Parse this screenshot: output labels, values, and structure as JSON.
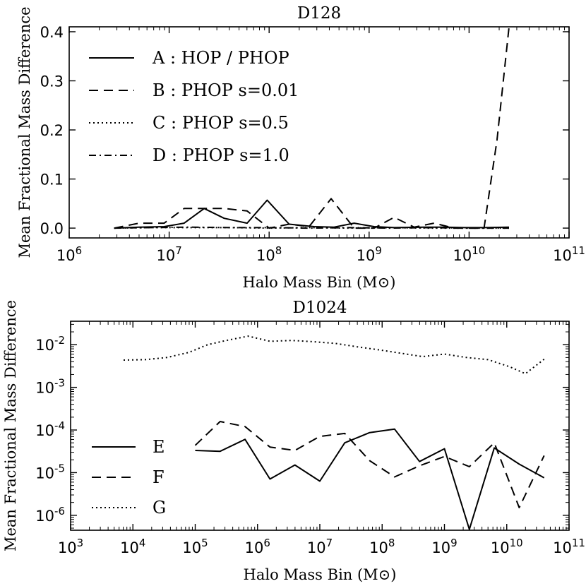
{
  "colors": {
    "line": "#000000",
    "background": "#ffffff"
  },
  "chart_data": [
    {
      "type": "line",
      "title": "D128",
      "xlabel": "Halo Mass Bin (M⊙)",
      "ylabel": "Mean Fractional Mass Difference",
      "xscale": "log",
      "yscale": "linear",
      "xlim_exp": [
        6,
        11
      ],
      "ylim": [
        -0.02,
        0.41
      ],
      "x_ticks": [
        {
          "base": "10",
          "exp": "6"
        },
        {
          "base": "10",
          "exp": "7"
        },
        {
          "base": "10",
          "exp": "8"
        },
        {
          "base": "10",
          "exp": "9"
        },
        {
          "base": "10",
          "exp": "10"
        },
        {
          "base": "10",
          "exp": "11"
        }
      ],
      "y_ticks": [
        "0.0",
        "0.1",
        "0.2",
        "0.3",
        "0.4"
      ],
      "legend_position": "top-left",
      "series": [
        {
          "key": "A",
          "name": "A : HOP / PHOP",
          "style": "solid",
          "x_log": [
            6.45,
            6.7,
            6.95,
            7.15,
            7.35,
            7.55,
            7.78,
            7.98,
            8.2,
            8.45,
            8.65,
            8.85,
            9.05,
            9.25,
            9.55,
            9.75,
            9.95,
            10.15,
            10.4
          ],
          "y": [
            0.0,
            0.002,
            0.003,
            0.01,
            0.04,
            0.02,
            0.01,
            0.057,
            0.008,
            0.003,
            0.002,
            0.01,
            0.003,
            0.001,
            0.002,
            0.002,
            0.001,
            0.001,
            0.002
          ]
        },
        {
          "key": "B",
          "name": "B : PHOP s=0.01",
          "style": "dashed",
          "x_log": [
            6.45,
            6.7,
            6.95,
            7.15,
            7.35,
            7.55,
            7.78,
            8.0,
            8.2,
            8.4,
            8.62,
            8.85,
            9.05,
            9.25,
            9.45,
            9.65,
            9.85,
            10.05,
            10.15,
            10.28,
            10.4
          ],
          "y": [
            0.0,
            0.01,
            0.01,
            0.04,
            0.04,
            0.04,
            0.035,
            0.0,
            0.008,
            0.003,
            0.06,
            0.0,
            0.0,
            0.022,
            0.002,
            0.01,
            0.0,
            0.0,
            0.0,
            0.18,
            0.41
          ]
        },
        {
          "key": "C",
          "name": "C : PHOP s=0.5",
          "style": "dotted",
          "x_log": [
            6.45,
            6.8,
            7.2,
            7.6,
            8.0,
            8.4,
            8.8,
            9.2,
            9.6,
            10.0,
            10.4
          ],
          "y": [
            0.0,
            0.001,
            0.001,
            0.001,
            0.0,
            0.001,
            0.0,
            0.001,
            0.0,
            0.0,
            0.0
          ]
        },
        {
          "key": "D",
          "name": "D : PHOP s=1.0",
          "style": "dashdot",
          "x_log": [
            6.45,
            6.8,
            7.2,
            7.6,
            8.0,
            8.4,
            8.8,
            9.2,
            9.6,
            10.0,
            10.4
          ],
          "y": [
            0.0,
            0.001,
            0.002,
            0.001,
            0.001,
            0.0,
            0.001,
            0.0,
            0.001,
            0.0,
            0.0
          ]
        }
      ]
    },
    {
      "type": "line",
      "title": "D1024",
      "xlabel": "Halo Mass Bin (M⊙)",
      "ylabel": "Mean Fractional Mass Difference",
      "xscale": "log",
      "yscale": "log",
      "xlim_exp": [
        3,
        11
      ],
      "ylim_exp": [
        -6.35,
        -1.45
      ],
      "x_ticks": [
        {
          "base": "10",
          "exp": "3"
        },
        {
          "base": "10",
          "exp": "4"
        },
        {
          "base": "10",
          "exp": "5"
        },
        {
          "base": "10",
          "exp": "6"
        },
        {
          "base": "10",
          "exp": "7"
        },
        {
          "base": "10",
          "exp": "8"
        },
        {
          "base": "10",
          "exp": "9"
        },
        {
          "base": "10",
          "exp": "10"
        },
        {
          "base": "10",
          "exp": "11"
        }
      ],
      "y_ticks": [
        {
          "base": "10",
          "exp": "-6"
        },
        {
          "base": "10",
          "exp": "-5"
        },
        {
          "base": "10",
          "exp": "-4"
        },
        {
          "base": "10",
          "exp": "-3"
        },
        {
          "base": "10",
          "exp": "-2"
        }
      ],
      "legend_position": "lower-left",
      "series": [
        {
          "key": "E",
          "name": "E",
          "style": "solid",
          "x_log": [
            5.0,
            5.4,
            5.8,
            6.2,
            6.6,
            7.0,
            7.4,
            7.8,
            8.2,
            8.6,
            9.0,
            9.4,
            9.8,
            10.2,
            10.6
          ],
          "y_log": [
            -4.48,
            -4.5,
            -4.22,
            -5.15,
            -4.82,
            -5.2,
            -4.3,
            -4.06,
            -3.98,
            -4.74,
            -4.44,
            -6.33,
            -4.42,
            -4.8,
            -5.12
          ]
        },
        {
          "key": "F",
          "name": "F",
          "style": "dashed",
          "x_log": [
            5.0,
            5.4,
            5.8,
            6.2,
            6.6,
            7.0,
            7.4,
            7.8,
            8.2,
            8.6,
            9.0,
            9.4,
            9.8,
            10.2,
            10.6
          ],
          "y_log": [
            -4.36,
            -3.8,
            -3.92,
            -4.4,
            -4.48,
            -4.15,
            -4.08,
            -4.72,
            -5.1,
            -4.84,
            -4.62,
            -4.86,
            -4.3,
            -5.82,
            -4.6
          ]
        },
        {
          "key": "G",
          "name": "G",
          "style": "dotted",
          "x_log": [
            3.85,
            4.2,
            4.55,
            4.9,
            5.2,
            5.5,
            5.85,
            6.2,
            6.55,
            6.9,
            7.25,
            7.6,
            7.95,
            8.3,
            8.65,
            9.0,
            9.35,
            9.7,
            10.05,
            10.3,
            10.6
          ],
          "y_log": [
            -2.36,
            -2.35,
            -2.3,
            -2.18,
            -2.0,
            -1.9,
            -1.8,
            -1.92,
            -1.9,
            -1.93,
            -1.97,
            -2.05,
            -2.12,
            -2.2,
            -2.28,
            -2.22,
            -2.3,
            -2.35,
            -2.52,
            -2.68,
            -2.34
          ]
        }
      ]
    }
  ]
}
